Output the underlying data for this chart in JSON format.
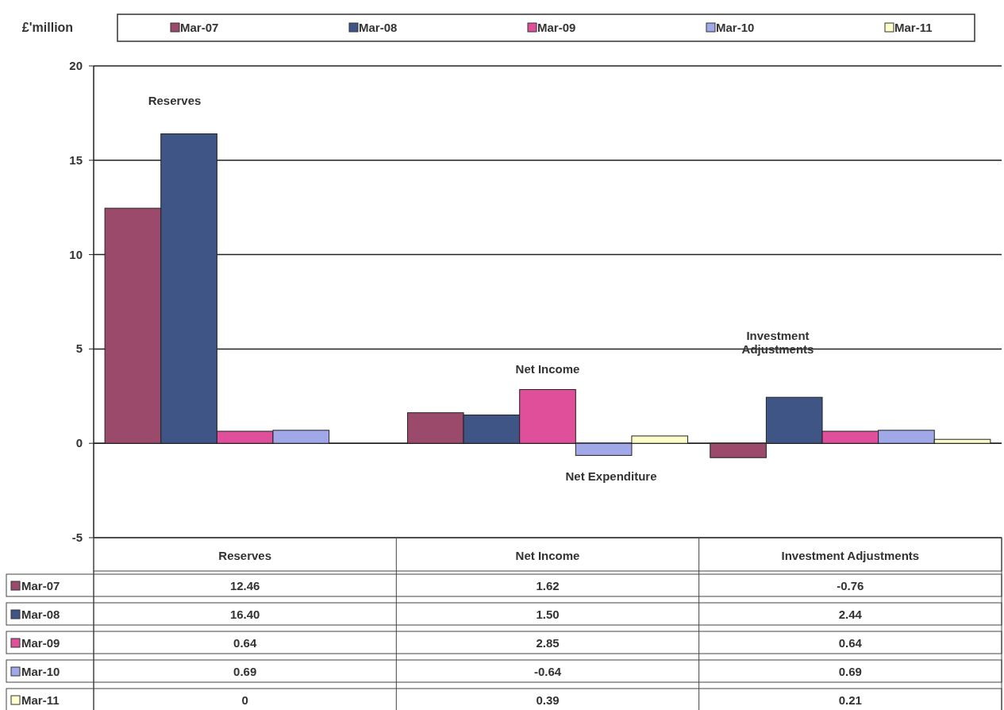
{
  "chart_data": {
    "type": "bar",
    "ylabel": "£'million",
    "categories": [
      "Reserves",
      "Net Income",
      "Investment Adjustments"
    ],
    "series": [
      {
        "name": "Mar-07",
        "color": "#9c4a6c",
        "values": [
          12.46,
          1.62,
          -0.76
        ],
        "value_labels": [
          "12.46",
          "1.62",
          "-0.76"
        ]
      },
      {
        "name": "Mar-08",
        "color": "#3f5586",
        "values": [
          16.4,
          1.5,
          2.44
        ],
        "value_labels": [
          "16.40",
          "1.50",
          "2.44"
        ]
      },
      {
        "name": "Mar-09",
        "color": "#e0509a",
        "values": [
          0.64,
          2.85,
          0.64
        ],
        "value_labels": [
          "0.64",
          "2.85",
          "0.64"
        ]
      },
      {
        "name": "Mar-10",
        "color": "#a0a8e8",
        "values": [
          0.69,
          -0.64,
          0.69
        ],
        "value_labels": [
          "0.69",
          "-0.64",
          "0.69"
        ]
      },
      {
        "name": "Mar-11",
        "color": "#ffffcc",
        "values": [
          0,
          0.39,
          0.21
        ],
        "value_labels": [
          "0",
          "0.39",
          "0.21"
        ]
      }
    ],
    "ylim": [
      -5,
      20
    ],
    "yticks": [
      -5,
      0,
      5,
      10,
      15,
      20
    ],
    "grid": "y",
    "legend": "bottom left",
    "annotations": [
      "Reserves",
      "Net Income",
      "Net Expenditure",
      "Investment Adjustments"
    ]
  }
}
